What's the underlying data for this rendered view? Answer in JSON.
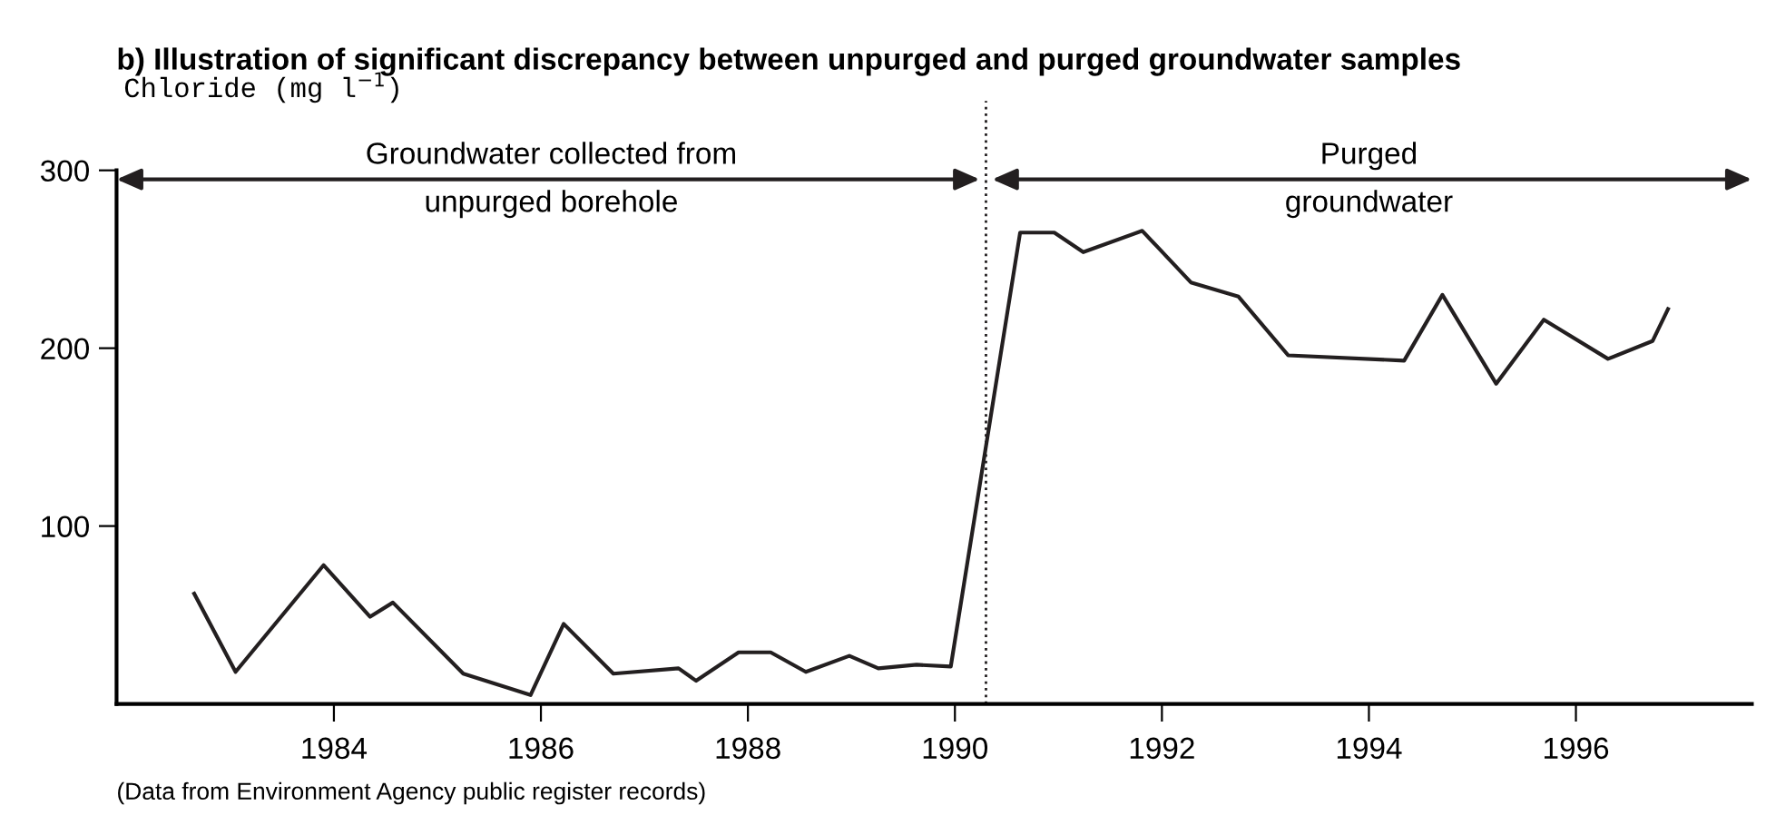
{
  "chart_data": {
    "type": "line",
    "title": "b) Illustration of significant discrepancy between unpurged and purged groundwater samples",
    "ylabel": "Chloride (mg l$^{−1}$)",
    "x": [
      1982.65,
      1983.05,
      1983.9,
      1984.35,
      1984.57,
      1985.25,
      1985.9,
      1986.22,
      1986.7,
      1987.33,
      1987.5,
      1987.91,
      1988.22,
      1988.56,
      1988.98,
      1989.26,
      1989.63,
      1989.96,
      1990.63,
      1990.96,
      1991.24,
      1991.81,
      1992.28,
      1992.74,
      1993.22,
      1994.34,
      1994.71,
      1995.23,
      1995.69,
      1996.31,
      1996.74,
      1996.89
    ],
    "series": [
      {
        "color": "#231f20",
        "values": [
          62,
          18,
          78,
          49,
          57,
          17,
          5,
          45,
          17,
          20,
          13,
          29,
          29,
          18,
          27,
          20,
          22,
          21,
          265,
          265,
          254,
          266,
          237,
          229,
          196,
          193,
          230,
          180,
          216,
          194,
          204,
          222
        ]
      }
    ],
    "xlim": [
      1981.9,
      1997.7
    ],
    "ylim": [
      0,
      300
    ],
    "xticks": [
      1984,
      1986,
      1988,
      1990,
      1992,
      1994,
      1996
    ],
    "yticks": [
      100,
      200,
      300
    ],
    "ref_lines": [
      {
        "axis": "x",
        "value": 1990.3,
        "line_style": "dotted",
        "color": "#231f20"
      }
    ],
    "annotations": [
      "Groundwater collected from",
      "unpurged borehole",
      "Purged",
      "groundwater",
      "(Data from Environment Agency public register records)"
    ],
    "grid": false,
    "marker": "none",
    "line_style": "solid"
  }
}
